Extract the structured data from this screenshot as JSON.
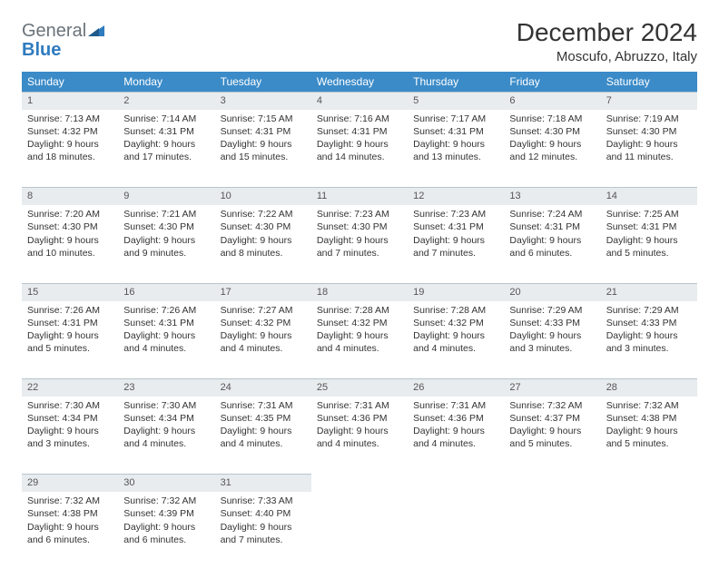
{
  "logo": {
    "text_main": "General",
    "text_accent": "Blue",
    "accent_color": "#2f7bbf",
    "main_color": "#6a737b"
  },
  "header": {
    "title": "December 2024",
    "location": "Moscufo, Abruzzo, Italy"
  },
  "calendar": {
    "header_bg": "#3b8bc8",
    "header_fg": "#ffffff",
    "daynum_bg": "#e8ecef",
    "border_color": "#b8c4cc",
    "days_of_week": [
      "Sunday",
      "Monday",
      "Tuesday",
      "Wednesday",
      "Thursday",
      "Friday",
      "Saturday"
    ],
    "weeks": [
      [
        {
          "num": "1",
          "sunrise": "Sunrise: 7:13 AM",
          "sunset": "Sunset: 4:32 PM",
          "daylight": "Daylight: 9 hours and 18 minutes."
        },
        {
          "num": "2",
          "sunrise": "Sunrise: 7:14 AM",
          "sunset": "Sunset: 4:31 PM",
          "daylight": "Daylight: 9 hours and 17 minutes."
        },
        {
          "num": "3",
          "sunrise": "Sunrise: 7:15 AM",
          "sunset": "Sunset: 4:31 PM",
          "daylight": "Daylight: 9 hours and 15 minutes."
        },
        {
          "num": "4",
          "sunrise": "Sunrise: 7:16 AM",
          "sunset": "Sunset: 4:31 PM",
          "daylight": "Daylight: 9 hours and 14 minutes."
        },
        {
          "num": "5",
          "sunrise": "Sunrise: 7:17 AM",
          "sunset": "Sunset: 4:31 PM",
          "daylight": "Daylight: 9 hours and 13 minutes."
        },
        {
          "num": "6",
          "sunrise": "Sunrise: 7:18 AM",
          "sunset": "Sunset: 4:30 PM",
          "daylight": "Daylight: 9 hours and 12 minutes."
        },
        {
          "num": "7",
          "sunrise": "Sunrise: 7:19 AM",
          "sunset": "Sunset: 4:30 PM",
          "daylight": "Daylight: 9 hours and 11 minutes."
        }
      ],
      [
        {
          "num": "8",
          "sunrise": "Sunrise: 7:20 AM",
          "sunset": "Sunset: 4:30 PM",
          "daylight": "Daylight: 9 hours and 10 minutes."
        },
        {
          "num": "9",
          "sunrise": "Sunrise: 7:21 AM",
          "sunset": "Sunset: 4:30 PM",
          "daylight": "Daylight: 9 hours and 9 minutes."
        },
        {
          "num": "10",
          "sunrise": "Sunrise: 7:22 AM",
          "sunset": "Sunset: 4:30 PM",
          "daylight": "Daylight: 9 hours and 8 minutes."
        },
        {
          "num": "11",
          "sunrise": "Sunrise: 7:23 AM",
          "sunset": "Sunset: 4:30 PM",
          "daylight": "Daylight: 9 hours and 7 minutes."
        },
        {
          "num": "12",
          "sunrise": "Sunrise: 7:23 AM",
          "sunset": "Sunset: 4:31 PM",
          "daylight": "Daylight: 9 hours and 7 minutes."
        },
        {
          "num": "13",
          "sunrise": "Sunrise: 7:24 AM",
          "sunset": "Sunset: 4:31 PM",
          "daylight": "Daylight: 9 hours and 6 minutes."
        },
        {
          "num": "14",
          "sunrise": "Sunrise: 7:25 AM",
          "sunset": "Sunset: 4:31 PM",
          "daylight": "Daylight: 9 hours and 5 minutes."
        }
      ],
      [
        {
          "num": "15",
          "sunrise": "Sunrise: 7:26 AM",
          "sunset": "Sunset: 4:31 PM",
          "daylight": "Daylight: 9 hours and 5 minutes."
        },
        {
          "num": "16",
          "sunrise": "Sunrise: 7:26 AM",
          "sunset": "Sunset: 4:31 PM",
          "daylight": "Daylight: 9 hours and 4 minutes."
        },
        {
          "num": "17",
          "sunrise": "Sunrise: 7:27 AM",
          "sunset": "Sunset: 4:32 PM",
          "daylight": "Daylight: 9 hours and 4 minutes."
        },
        {
          "num": "18",
          "sunrise": "Sunrise: 7:28 AM",
          "sunset": "Sunset: 4:32 PM",
          "daylight": "Daylight: 9 hours and 4 minutes."
        },
        {
          "num": "19",
          "sunrise": "Sunrise: 7:28 AM",
          "sunset": "Sunset: 4:32 PM",
          "daylight": "Daylight: 9 hours and 4 minutes."
        },
        {
          "num": "20",
          "sunrise": "Sunrise: 7:29 AM",
          "sunset": "Sunset: 4:33 PM",
          "daylight": "Daylight: 9 hours and 3 minutes."
        },
        {
          "num": "21",
          "sunrise": "Sunrise: 7:29 AM",
          "sunset": "Sunset: 4:33 PM",
          "daylight": "Daylight: 9 hours and 3 minutes."
        }
      ],
      [
        {
          "num": "22",
          "sunrise": "Sunrise: 7:30 AM",
          "sunset": "Sunset: 4:34 PM",
          "daylight": "Daylight: 9 hours and 3 minutes."
        },
        {
          "num": "23",
          "sunrise": "Sunrise: 7:30 AM",
          "sunset": "Sunset: 4:34 PM",
          "daylight": "Daylight: 9 hours and 4 minutes."
        },
        {
          "num": "24",
          "sunrise": "Sunrise: 7:31 AM",
          "sunset": "Sunset: 4:35 PM",
          "daylight": "Daylight: 9 hours and 4 minutes."
        },
        {
          "num": "25",
          "sunrise": "Sunrise: 7:31 AM",
          "sunset": "Sunset: 4:36 PM",
          "daylight": "Daylight: 9 hours and 4 minutes."
        },
        {
          "num": "26",
          "sunrise": "Sunrise: 7:31 AM",
          "sunset": "Sunset: 4:36 PM",
          "daylight": "Daylight: 9 hours and 4 minutes."
        },
        {
          "num": "27",
          "sunrise": "Sunrise: 7:32 AM",
          "sunset": "Sunset: 4:37 PM",
          "daylight": "Daylight: 9 hours and 5 minutes."
        },
        {
          "num": "28",
          "sunrise": "Sunrise: 7:32 AM",
          "sunset": "Sunset: 4:38 PM",
          "daylight": "Daylight: 9 hours and 5 minutes."
        }
      ],
      [
        {
          "num": "29",
          "sunrise": "Sunrise: 7:32 AM",
          "sunset": "Sunset: 4:38 PM",
          "daylight": "Daylight: 9 hours and 6 minutes."
        },
        {
          "num": "30",
          "sunrise": "Sunrise: 7:32 AM",
          "sunset": "Sunset: 4:39 PM",
          "daylight": "Daylight: 9 hours and 6 minutes."
        },
        {
          "num": "31",
          "sunrise": "Sunrise: 7:33 AM",
          "sunset": "Sunset: 4:40 PM",
          "daylight": "Daylight: 9 hours and 7 minutes."
        },
        null,
        null,
        null,
        null
      ]
    ]
  }
}
